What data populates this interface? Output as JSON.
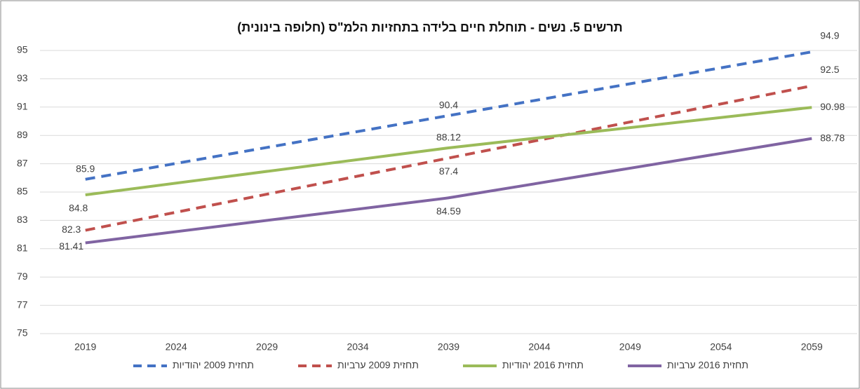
{
  "chart_data": {
    "type": "line",
    "title": "תרשים 5. נשים - תוחלת חיים בלידה בתחזיות הלמ\"ס (חלופה בינונית)",
    "x": [
      2019,
      2039,
      2059
    ],
    "xlim": [
      2016.5,
      2061.5
    ],
    "xticks": [
      2019,
      2024,
      2029,
      2034,
      2039,
      2044,
      2049,
      2054,
      2059
    ],
    "ylim": [
      75,
      95
    ],
    "yticks": [
      75,
      77,
      79,
      81,
      83,
      85,
      87,
      89,
      91,
      93,
      95
    ],
    "grid": true,
    "legend": "bottom",
    "series": [
      {
        "name": "תחזית 2009 יהודיות",
        "color": "#4472c4",
        "dashed": true,
        "values": [
          85.9,
          90.4,
          94.9
        ]
      },
      {
        "name": "תחזית 2009 ערביות",
        "color": "#c0504d",
        "dashed": true,
        "values": [
          82.3,
          87.4,
          92.5
        ]
      },
      {
        "name": "תחזית 2016 יהודיות",
        "color": "#9bbb59",
        "dashed": false,
        "values": [
          84.8,
          88.12,
          90.98
        ]
      },
      {
        "name": "תחזית 2016 ערביות",
        "color": "#8064a2",
        "dashed": false,
        "values": [
          81.41,
          84.59,
          88.78
        ]
      }
    ]
  }
}
